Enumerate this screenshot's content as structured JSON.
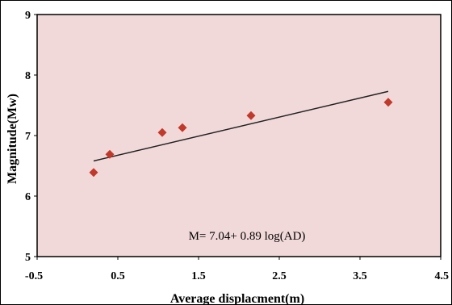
{
  "chart_data": {
    "type": "scatter",
    "xlabel": "Average displacment(m)",
    "ylabel": "Magnitude(Mw)",
    "xlim": [
      -0.5,
      4.5
    ],
    "ylim": [
      5,
      9
    ],
    "x_ticks": [
      "-0.5",
      "0.5",
      "1.5",
      "2.5",
      "3.5",
      "4.5"
    ],
    "y_ticks": [
      "5",
      "6",
      "7",
      "8",
      "9"
    ],
    "grid": false,
    "legend": "none",
    "series": [
      {
        "points": [
          {
            "x": 0.2,
            "y": 6.39
          },
          {
            "x": 0.4,
            "y": 6.69
          },
          {
            "x": 1.05,
            "y": 7.05
          },
          {
            "x": 1.3,
            "y": 7.13
          },
          {
            "x": 2.15,
            "y": 7.33
          },
          {
            "x": 3.85,
            "y": 7.55
          }
        ]
      }
    ],
    "trendline": {
      "x_start": 0.2,
      "y_start": 6.58,
      "x_end": 3.85,
      "y_end": 7.73
    },
    "annotation": "M= 7.04+ 0.89 log(AD)",
    "colors": {
      "plot_area": "#f2d9d9",
      "marker": "#c0392b",
      "trendline": "#222222",
      "border": "#000000"
    }
  }
}
